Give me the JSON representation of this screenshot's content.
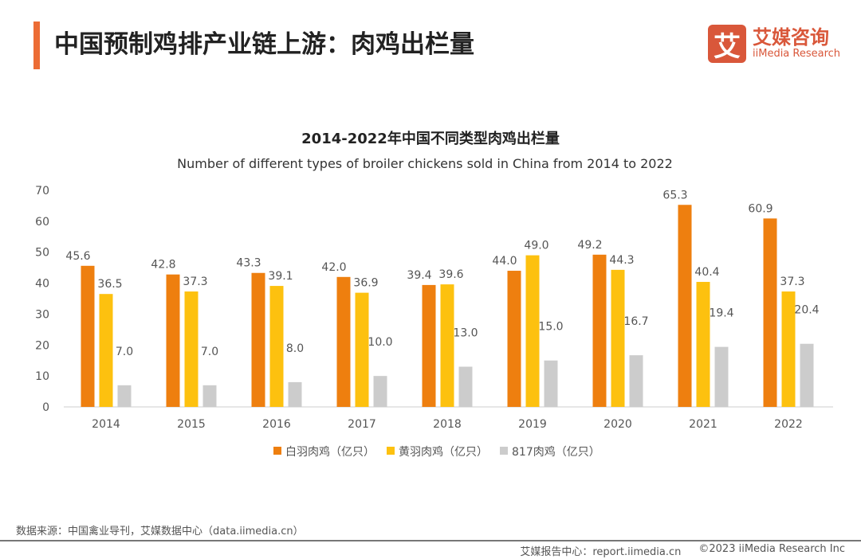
{
  "header": {
    "title": "中国预制鸡排产业链上游：肉鸡出栏量"
  },
  "logo": {
    "mark": "艾",
    "cn": "艾媒咨询",
    "en": "iiMedia Research"
  },
  "chart_data": {
    "type": "bar",
    "title": "2014-2022年中国不同类型肉鸡出栏量",
    "subtitle": "Number of different types of broiler chickens sold in China from 2014 to 2022",
    "categories": [
      "2014",
      "2015",
      "2016",
      "2017",
      "2018",
      "2019",
      "2020",
      "2021",
      "2022"
    ],
    "ylim": [
      0,
      70
    ],
    "yticks": [
      0,
      10,
      20,
      30,
      40,
      50,
      60,
      70
    ],
    "grid": false,
    "legend_position": "bottom",
    "series": [
      {
        "name": "白羽肉鸡（亿只）",
        "color": "#ee7f0f",
        "values": [
          45.6,
          42.8,
          43.3,
          42.0,
          39.4,
          44.0,
          49.2,
          65.3,
          60.9
        ]
      },
      {
        "name": "黄羽肉鸡（亿只）",
        "color": "#fdc10f",
        "values": [
          36.5,
          37.3,
          39.1,
          36.9,
          39.6,
          49.0,
          44.3,
          40.4,
          37.3
        ]
      },
      {
        "name": "817肉鸡（亿只）",
        "color": "#cccccc",
        "values": [
          7.0,
          7.0,
          8.0,
          10.0,
          13.0,
          15.0,
          16.7,
          19.4,
          20.4
        ]
      }
    ]
  },
  "footer": {
    "source": "数据来源：中国禽业导刊，艾媒数据中心（data.iimedia.cn）",
    "report": "艾媒报告中心：report.iimedia.cn",
    "copyright": "©2023  iiMedia Research  Inc"
  }
}
